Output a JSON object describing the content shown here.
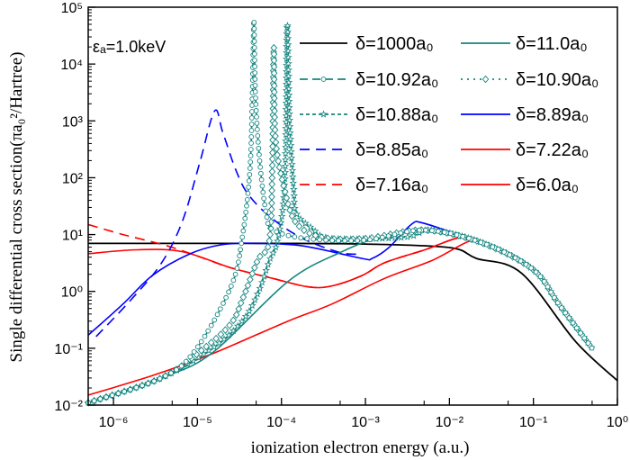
{
  "chart_data": {
    "type": "line",
    "xlabel": "ionization electron energy (a.u.)",
    "ylabel": "Single differential cross section(πa₀²/Hartree)",
    "annotation": "εₐ=1.0keV",
    "xscale": "log",
    "yscale": "log",
    "xlim": [
      5e-07,
      1
    ],
    "ylim": [
      0.01,
      100000
    ],
    "grid": false,
    "legend_position": "top-right",
    "x_tick_labels": [
      "10⁻⁶",
      "10⁻⁵",
      "10⁻⁴",
      "10⁻³",
      "10⁻²",
      "10⁻¹",
      "10⁰"
    ],
    "x_ticks": [
      1e-06,
      1e-05,
      0.0001,
      0.001,
      0.01,
      0.1,
      1
    ],
    "y_tick_labels": [
      "10⁻²",
      "10⁻¹",
      "10⁰",
      "10¹",
      "10²",
      "10³",
      "10⁴",
      "10⁵"
    ],
    "y_ticks": [
      0.01,
      0.1,
      1,
      10,
      100,
      1000,
      10000,
      100000
    ],
    "series": [
      {
        "name": "δ=1000a₀",
        "color": "#000000",
        "style": "solid",
        "marker": "none",
        "points": [
          [
            5e-07,
            7
          ],
          [
            1e-05,
            7
          ],
          [
            0.0001,
            7
          ],
          [
            0.001,
            6.8
          ],
          [
            0.01,
            5.9
          ],
          [
            0.021,
            3.8
          ],
          [
            0.072,
            2.1
          ],
          [
            0.32,
            0.13
          ],
          [
            1,
            0.027
          ]
        ]
      },
      {
        "name": "δ=11.0a₀",
        "color": "#14857f",
        "style": "solid",
        "marker": "none",
        "points": [
          [
            5e-07,
            0.011
          ],
          [
            3.7e-06,
            0.03
          ],
          [
            1.5e-05,
            0.083
          ],
          [
            0.00012,
            1.5
          ],
          [
            0.00051,
            4.9
          ],
          [
            0.0017,
            9.5
          ],
          [
            0.0062,
            11.5
          ],
          [
            0.025,
            7.1
          ],
          [
            0.1,
            2.4
          ],
          [
            0.2,
            0.6
          ],
          [
            0.5,
            0.1
          ]
        ]
      },
      {
        "name": "δ=10.92a₀",
        "color": "#14857f",
        "style": "dash",
        "marker": "circle",
        "points": [
          [
            5e-07,
            0.011
          ],
          [
            3.7e-06,
            0.03
          ],
          [
            9.3e-06,
            0.09
          ],
          [
            2.5e-05,
            1.2
          ],
          [
            3.4e-05,
            8.5
          ],
          [
            4.2e-05,
            130
          ],
          [
            4.5e-05,
            3000
          ],
          [
            4.7e-05,
            60000
          ],
          [
            4.9e-05,
            3000
          ],
          [
            5.5e-05,
            200
          ],
          [
            6.6e-05,
            23
          ],
          [
            8e-05,
            12
          ],
          [
            0.0002,
            8.5
          ],
          [
            0.001,
            8
          ],
          [
            0.005,
            12
          ],
          [
            0.025,
            7.1
          ],
          [
            0.1,
            2.4
          ],
          [
            0.2,
            0.6
          ],
          [
            0.5,
            0.1
          ]
        ]
      },
      {
        "name": "δ=10.90a₀",
        "color": "#14857f",
        "style": "dot",
        "marker": "diamond",
        "points": [
          [
            5e-07,
            0.011
          ],
          [
            3.7e-06,
            0.03
          ],
          [
            1.2e-05,
            0.1
          ],
          [
            2.5e-05,
            0.27
          ],
          [
            3.4e-05,
            0.7
          ],
          [
            5.2e-05,
            3.5
          ],
          [
            7.2e-05,
            8
          ],
          [
            7.8e-05,
            200
          ],
          [
            8.1e-05,
            20000
          ],
          [
            8.5e-05,
            500
          ],
          [
            0.00011,
            58
          ],
          [
            0.00015,
            16
          ],
          [
            0.0003,
            9
          ],
          [
            0.001,
            8.5
          ],
          [
            0.005,
            12
          ],
          [
            0.025,
            7.1
          ],
          [
            0.1,
            2.4
          ],
          [
            0.2,
            0.6
          ],
          [
            0.5,
            0.1
          ]
        ]
      },
      {
        "name": "δ=10.88a₀",
        "color": "#14857f",
        "style": "shortdash",
        "marker": "star",
        "points": [
          [
            5e-07,
            0.011
          ],
          [
            3.7e-06,
            0.03
          ],
          [
            1.5e-05,
            0.1
          ],
          [
            3.4e-05,
            0.3
          ],
          [
            5.2e-05,
            0.9
          ],
          [
            7.2e-05,
            3.5
          ],
          [
            9.1e-05,
            8.5
          ],
          [
            0.00011,
            100
          ],
          [
            0.000117,
            50000
          ],
          [
            0.000125,
            1000
          ],
          [
            0.00014,
            60
          ],
          [
            0.00015,
            24
          ],
          [
            0.00023,
            13
          ],
          [
            0.0004,
            8.5
          ],
          [
            0.003,
            9
          ],
          [
            0.006,
            12
          ],
          [
            0.025,
            7.1
          ],
          [
            0.1,
            2.4
          ],
          [
            0.2,
            0.6
          ],
          [
            0.5,
            0.1
          ]
        ]
      },
      {
        "name": "δ=8.89a₀",
        "color": "#0000ff",
        "style": "solid",
        "marker": "none",
        "points": [
          [
            5e-07,
            0.17
          ],
          [
            1.3e-06,
            0.6
          ],
          [
            2.9e-06,
            1.9
          ],
          [
            7.9e-06,
            4.5
          ],
          [
            1.9e-05,
            6.6
          ],
          [
            5e-05,
            7
          ],
          [
            0.00018,
            6.3
          ],
          [
            0.00091,
            3.8
          ],
          [
            0.0012,
            3.8
          ],
          [
            0.0019,
            5.9
          ],
          [
            0.0035,
            15
          ],
          [
            0.0048,
            16
          ],
          [
            0.014,
            9.5
          ],
          [
            0.025,
            7.1
          ],
          [
            0.1,
            2.4
          ],
          [
            0.2,
            0.6
          ],
          [
            0.5,
            0.1
          ]
        ]
      },
      {
        "name": "δ=8.85a₀",
        "color": "#0000ff",
        "style": "longdash",
        "marker": "none",
        "points": [
          [
            6.2e-07,
            0.16
          ],
          [
            1.6e-06,
            0.7
          ],
          [
            3.7e-06,
            3.1
          ],
          [
            6.6e-06,
            17
          ],
          [
            1.07e-05,
            190
          ],
          [
            1.6e-05,
            1500
          ],
          [
            2e-05,
            630
          ],
          [
            2.9e-05,
            130
          ],
          [
            4.1e-05,
            49
          ],
          [
            7.8e-05,
            19
          ],
          [
            0.00018,
            8.5
          ],
          [
            0.00048,
            4.9
          ],
          [
            0.0008,
            4.5
          ]
        ]
      },
      {
        "name": "δ=7.22a₀",
        "color": "#ff0000",
        "style": "solid",
        "marker": "none",
        "points": [
          [
            5e-07,
            4.6
          ],
          [
            1.9e-06,
            5.4
          ],
          [
            6.6e-06,
            5
          ],
          [
            2.5e-05,
            2.6
          ],
          [
            7.8e-05,
            1.7
          ],
          [
            0.00021,
            1.2
          ],
          [
            0.0004,
            1.25
          ],
          [
            0.00091,
            1.9
          ],
          [
            0.0017,
            3.2
          ],
          [
            0.0051,
            5.4
          ],
          [
            0.014,
            9
          ],
          [
            0.025,
            7.1
          ],
          [
            0.1,
            2.4
          ],
          [
            0.2,
            0.6
          ],
          [
            0.5,
            0.1
          ]
        ]
      },
      {
        "name": "δ=7.16a₀",
        "color": "#ff0000",
        "style": "longdash",
        "marker": "none",
        "points": [
          [
            5e-07,
            15
          ],
          [
            1.3e-06,
            10
          ],
          [
            4.4e-06,
            6.3
          ],
          [
            1.2e-05,
            3.8
          ],
          [
            2.5e-05,
            2.6
          ],
          [
            7.8e-05,
            1.7
          ],
          [
            0.00021,
            1.2
          ],
          [
            0.0004,
            1.25
          ],
          [
            0.00091,
            1.9
          ],
          [
            0.0017,
            3.2
          ],
          [
            0.0051,
            5.4
          ],
          [
            0.014,
            9
          ],
          [
            0.025,
            7.1
          ],
          [
            0.1,
            2.4
          ],
          [
            0.2,
            0.6
          ],
          [
            0.5,
            0.1
          ]
        ]
      },
      {
        "name": "δ=6.0a₀",
        "color": "#ff0000",
        "style": "solid",
        "marker": "none",
        "points": [
          [
            5e-07,
            0.015
          ],
          [
            2.9e-06,
            0.033
          ],
          [
            1.5e-05,
            0.08
          ],
          [
            0.00012,
            0.3
          ],
          [
            0.0004,
            0.6
          ],
          [
            0.0017,
            1.7
          ],
          [
            0.0062,
            3.5
          ],
          [
            0.017,
            7.6
          ],
          [
            0.025,
            7.1
          ],
          [
            0.1,
            2.4
          ],
          [
            0.2,
            0.6
          ],
          [
            0.5,
            0.1
          ]
        ]
      }
    ]
  }
}
